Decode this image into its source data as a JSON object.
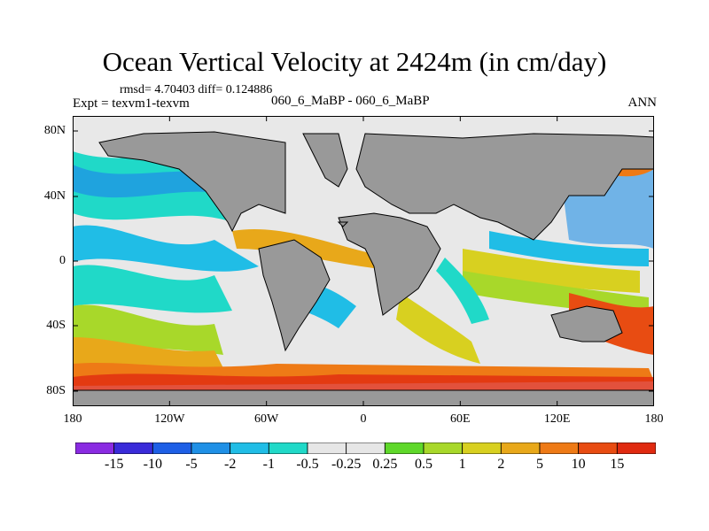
{
  "title": "Ocean Vertical Velocity at 2424m (in cm/day)",
  "stats": "rmsd= 4.70403 diff= 0.124886",
  "experiment": "Expt = texvm1-texvm",
  "case": "060_6_MaBP - 060_6_MaBP",
  "season": "ANN",
  "colors": {
    "land": "#999999",
    "outline": "#000000",
    "palette": [
      "#8a2be2",
      "#3a2bd9",
      "#1e5fe6",
      "#1f90e6",
      "#20bde6",
      "#20d9c8",
      "#e6e6e6",
      "#5fd82a",
      "#a8d82a",
      "#d8d020",
      "#e8a81a",
      "#ee7a16",
      "#e84c12",
      "#e02a10"
    ]
  },
  "y_ticks": [
    "80N",
    "40N",
    "0",
    "40S",
    "80S"
  ],
  "x_ticks": [
    "180",
    "120W",
    "60W",
    "0",
    "60E",
    "120E",
    "180"
  ],
  "colorbar_labels": [
    "-15",
    "-10",
    "-5",
    "-2",
    "-1",
    "-0.5",
    "-0.25",
    "0.25",
    "0.5",
    "1",
    "2",
    "5",
    "10",
    "15"
  ],
  "map": {
    "lon_range": [
      -180,
      180
    ],
    "lat_range": [
      -90,
      90
    ],
    "projection": "cylindrical-equidistant"
  }
}
